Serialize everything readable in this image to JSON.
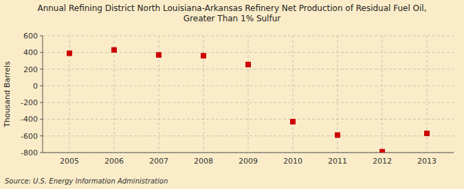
{
  "chart_data": {
    "type": "scatter",
    "title": "Annual Refining District North Louisiana-Arkansas Refinery Net Production of Residual Fuel Oil,\nGreater Than 1% Sulfur",
    "y_label": "Thousand Barrels",
    "source": "Source: U.S. Energy Information Administration",
    "x": [
      2005,
      2006,
      2007,
      2008,
      2009,
      2010,
      2011,
      2012,
      2013
    ],
    "values": [
      390,
      430,
      370,
      360,
      255,
      -430,
      -590,
      -790,
      -570
    ],
    "xlim": [
      2004.4,
      2013.6
    ],
    "xticks": [
      2005,
      2006,
      2007,
      2008,
      2009,
      2010,
      2011,
      2012,
      2013
    ],
    "ylim": [
      -800,
      600
    ],
    "yticks": [
      -800,
      -600,
      -400,
      -200,
      0,
      200,
      400,
      600
    ],
    "color": "#cc0000",
    "marker": "square",
    "grid": true
  }
}
